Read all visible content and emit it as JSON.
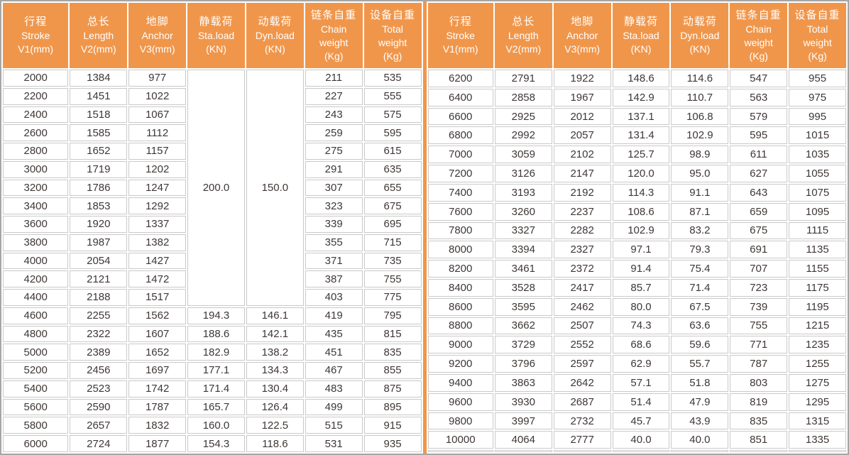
{
  "table": {
    "title": "chain-hoist-specification-table",
    "columns": [
      {
        "lines": [
          "行程",
          "Stroke",
          "V1(mm)"
        ]
      },
      {
        "lines": [
          "总长",
          "Length",
          "V2(mm)"
        ]
      },
      {
        "lines": [
          "地脚",
          "Anchor",
          "V3(mm)"
        ]
      },
      {
        "lines": [
          "静载荷",
          "Sta.load",
          "(KN)"
        ]
      },
      {
        "lines": [
          "动载荷",
          "Dyn.load",
          "(KN)"
        ]
      },
      {
        "lines": [
          "链条自重",
          "Chain",
          "weight",
          "(Kg)"
        ]
      },
      {
        "lines": [
          "设备自重",
          "Total",
          "weight",
          "(Kg)"
        ]
      }
    ],
    "left": {
      "merged": {
        "sta_load": "200.0",
        "dyn_load": "150.0",
        "span": 13
      },
      "rows": [
        [
          "2000",
          "1384",
          "977",
          "",
          "",
          "211",
          "535"
        ],
        [
          "2200",
          "1451",
          "1022",
          "",
          "",
          "227",
          "555"
        ],
        [
          "2400",
          "1518",
          "1067",
          "",
          "",
          "243",
          "575"
        ],
        [
          "2600",
          "1585",
          "1112",
          "",
          "",
          "259",
          "595"
        ],
        [
          "2800",
          "1652",
          "1157",
          "",
          "",
          "275",
          "615"
        ],
        [
          "3000",
          "1719",
          "1202",
          "",
          "",
          "291",
          "635"
        ],
        [
          "3200",
          "1786",
          "1247",
          "",
          "",
          "307",
          "655"
        ],
        [
          "3400",
          "1853",
          "1292",
          "",
          "",
          "323",
          "675"
        ],
        [
          "3600",
          "1920",
          "1337",
          "",
          "",
          "339",
          "695"
        ],
        [
          "3800",
          "1987",
          "1382",
          "",
          "",
          "355",
          "715"
        ],
        [
          "4000",
          "2054",
          "1427",
          "",
          "",
          "371",
          "735"
        ],
        [
          "4200",
          "2121",
          "1472",
          "",
          "",
          "387",
          "755"
        ],
        [
          "4400",
          "2188",
          "1517",
          "",
          "",
          "403",
          "775"
        ],
        [
          "4600",
          "2255",
          "1562",
          "194.3",
          "146.1",
          "419",
          "795"
        ],
        [
          "4800",
          "2322",
          "1607",
          "188.6",
          "142.1",
          "435",
          "815"
        ],
        [
          "5000",
          "2389",
          "1652",
          "182.9",
          "138.2",
          "451",
          "835"
        ],
        [
          "5200",
          "2456",
          "1697",
          "177.1",
          "134.3",
          "467",
          "855"
        ],
        [
          "5400",
          "2523",
          "1742",
          "171.4",
          "130.4",
          "483",
          "875"
        ],
        [
          "5600",
          "2590",
          "1787",
          "165.7",
          "126.4",
          "499",
          "895"
        ],
        [
          "5800",
          "2657",
          "1832",
          "160.0",
          "122.5",
          "515",
          "915"
        ],
        [
          "6000",
          "2724",
          "1877",
          "154.3",
          "118.6",
          "531",
          "935"
        ]
      ]
    },
    "right": {
      "rows": [
        [
          "6200",
          "2791",
          "1922",
          "148.6",
          "114.6",
          "547",
          "955"
        ],
        [
          "6400",
          "2858",
          "1967",
          "142.9",
          "110.7",
          "563",
          "975"
        ],
        [
          "6600",
          "2925",
          "2012",
          "137.1",
          "106.8",
          "579",
          "995"
        ],
        [
          "6800",
          "2992",
          "2057",
          "131.4",
          "102.9",
          "595",
          "1015"
        ],
        [
          "7000",
          "3059",
          "2102",
          "125.7",
          "98.9",
          "611",
          "1035"
        ],
        [
          "7200",
          "3126",
          "2147",
          "120.0",
          "95.0",
          "627",
          "1055"
        ],
        [
          "7400",
          "3193",
          "2192",
          "114.3",
          "91.1",
          "643",
          "1075"
        ],
        [
          "7600",
          "3260",
          "2237",
          "108.6",
          "87.1",
          "659",
          "1095"
        ],
        [
          "7800",
          "3327",
          "2282",
          "102.9",
          "83.2",
          "675",
          "1115"
        ],
        [
          "8000",
          "3394",
          "2327",
          "97.1",
          "79.3",
          "691",
          "1135"
        ],
        [
          "8200",
          "3461",
          "2372",
          "91.4",
          "75.4",
          "707",
          "1155"
        ],
        [
          "8400",
          "3528",
          "2417",
          "85.7",
          "71.4",
          "723",
          "1175"
        ],
        [
          "8600",
          "3595",
          "2462",
          "80.0",
          "67.5",
          "739",
          "1195"
        ],
        [
          "8800",
          "3662",
          "2507",
          "74.3",
          "63.6",
          "755",
          "1215"
        ],
        [
          "9000",
          "3729",
          "2552",
          "68.6",
          "59.6",
          "771",
          "1235"
        ],
        [
          "9200",
          "3796",
          "2597",
          "62.9",
          "55.7",
          "787",
          "1255"
        ],
        [
          "9400",
          "3863",
          "2642",
          "57.1",
          "51.8",
          "803",
          "1275"
        ],
        [
          "9600",
          "3930",
          "2687",
          "51.4",
          "47.9",
          "819",
          "1295"
        ],
        [
          "9800",
          "3997",
          "2732",
          "45.7",
          "43.9",
          "835",
          "1315"
        ],
        [
          "10000",
          "4064",
          "2777",
          "40.0",
          "40.0",
          "851",
          "1335"
        ],
        [
          "",
          "",
          "",
          "",
          "",
          "",
          ""
        ]
      ]
    },
    "colors": {
      "header_bg": "#f0964b",
      "header_text": "#ffffff",
      "divider": "#f0964b",
      "grid_border": "#c9c9c9",
      "outer_border": "#a6a6a6",
      "cell_text": "#3e3735",
      "cell_bg": "#ffffff"
    }
  }
}
